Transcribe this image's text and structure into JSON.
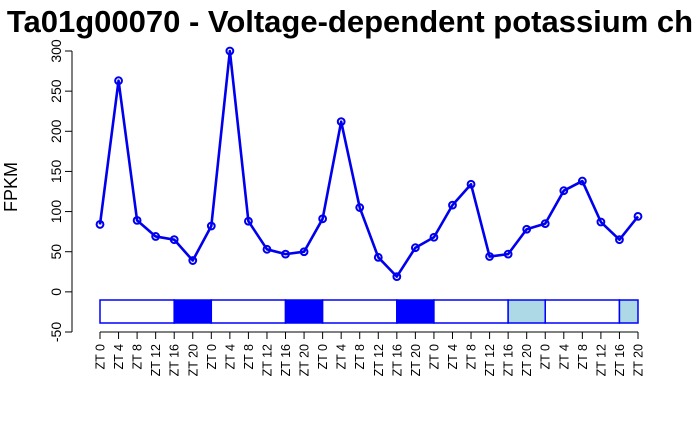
{
  "chart_data": {
    "type": "line",
    "title": "Ta01g00070 - Voltage-dependent potassium ch",
    "xlabel": "",
    "ylabel": "FPKM",
    "ylim": [
      -50,
      300
    ],
    "yticks": [
      -50,
      0,
      50,
      100,
      150,
      200,
      250,
      300
    ],
    "grid": false,
    "series_color": "#0000ee",
    "categories": [
      "ZT 0",
      "ZT 4",
      "ZT 8",
      "ZT 12",
      "ZT 16",
      "ZT 20",
      "ZT 0",
      "ZT 4",
      "ZT 8",
      "ZT 12",
      "ZT 16",
      "ZT 20",
      "ZT 0",
      "ZT 4",
      "ZT 8",
      "ZT 12",
      "ZT 16",
      "ZT 20",
      "ZT 0",
      "ZT 4",
      "ZT 8",
      "ZT 12",
      "ZT 16",
      "ZT 20",
      "ZT 0",
      "ZT 4",
      "ZT 8",
      "ZT 12",
      "ZT 16",
      "ZT 20"
    ],
    "values": [
      84,
      263,
      89,
      69,
      65,
      39,
      82,
      300,
      88,
      53,
      47,
      50,
      91,
      212,
      105,
      43,
      19,
      55,
      68,
      108,
      134,
      44,
      47,
      78,
      85,
      126,
      138,
      87,
      65,
      94
    ],
    "condition_bar": {
      "colors": {
        "light": "#ffffff",
        "dark": "#0000ff",
        "free": "#add8e6"
      },
      "segments": [
        {
          "start": 0,
          "end": 4,
          "kind": "light"
        },
        {
          "start": 4,
          "end": 6,
          "kind": "dark"
        },
        {
          "start": 6,
          "end": 10,
          "kind": "light"
        },
        {
          "start": 10,
          "end": 12,
          "kind": "dark"
        },
        {
          "start": 12,
          "end": 16,
          "kind": "light"
        },
        {
          "start": 16,
          "end": 18,
          "kind": "dark"
        },
        {
          "start": 18,
          "end": 22,
          "kind": "light"
        },
        {
          "start": 22,
          "end": 24,
          "kind": "free"
        },
        {
          "start": 24,
          "end": 28,
          "kind": "light"
        },
        {
          "start": 28,
          "end": 29,
          "kind": "free"
        }
      ]
    }
  }
}
